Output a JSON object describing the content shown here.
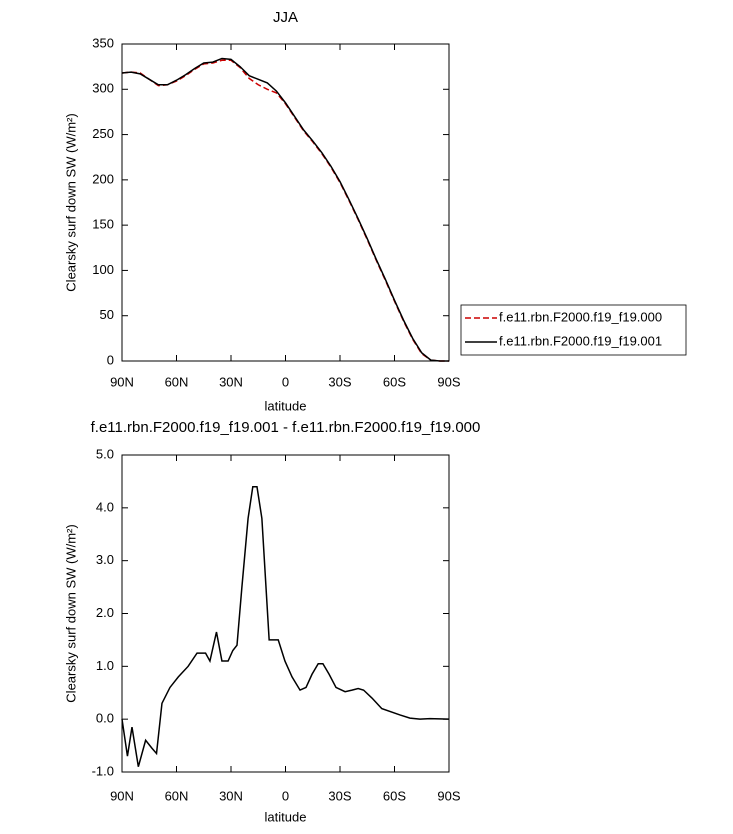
{
  "chart_data": [
    {
      "type": "line",
      "title": "JJA",
      "x_label": "latitude",
      "y_label": "Clearsky surf down SW (W/m²)",
      "x": [
        90,
        85,
        80,
        75,
        70,
        65,
        60,
        55,
        50,
        45,
        40,
        35,
        30,
        25,
        20,
        15,
        10,
        5,
        0,
        -5,
        -10,
        -15,
        -20,
        -25,
        -30,
        -35,
        -40,
        -45,
        -50,
        -55,
        -60,
        -65,
        -70,
        -75,
        -80,
        -85,
        -90
      ],
      "series": [
        {
          "name": "f.e11.rbn.F2000.f19_f19.000",
          "color": "#cc0000",
          "line_style": "dashed",
          "values": [
            318,
            319,
            318,
            311,
            304,
            305,
            309,
            315,
            322,
            328,
            329,
            332,
            332,
            324,
            312,
            305,
            300,
            296,
            284,
            269,
            254,
            242,
            229,
            214,
            197,
            177,
            156,
            134,
            111,
            89,
            66,
            44,
            24,
            8,
            1,
            0,
            0
          ]
        },
        {
          "name": "f.e11.rbn.F2000.f19_f19.001",
          "color": "#000000",
          "line_style": "solid",
          "values": [
            318,
            319,
            317,
            311,
            305,
            305,
            310,
            316,
            323,
            329,
            330,
            334,
            333,
            325,
            315,
            311,
            307,
            298,
            285,
            270,
            255,
            243,
            230,
            215,
            198,
            178,
            157,
            135,
            112,
            90,
            67,
            45,
            25,
            9,
            1,
            0,
            0
          ]
        }
      ],
      "xlim": [
        90,
        -90
      ],
      "xticks": [
        {
          "value": 90,
          "label": "90N"
        },
        {
          "value": 60,
          "label": "60N"
        },
        {
          "value": 30,
          "label": "30N"
        },
        0,
        {
          "value": -30,
          "label": "30S"
        },
        {
          "value": -60,
          "label": "60S"
        },
        {
          "value": -90,
          "label": "90S"
        }
      ],
      "ylim": [
        0,
        350
      ],
      "yticks": [
        0,
        50,
        100,
        150,
        200,
        250,
        300,
        350
      ],
      "legend": "right"
    },
    {
      "type": "line",
      "title": "f.e11.rbn.F2000.f19_f19.001 - f.e11.rbn.F2000.f19_f19.000",
      "x_label": "latitude",
      "y_label": "Clearsky surf down SW (W/m²)",
      "x": [
        90,
        87,
        84.5,
        81,
        77,
        73.5,
        71,
        68,
        63.6,
        59,
        53.6,
        48.7,
        44,
        41.6,
        38,
        35,
        31.6,
        29,
        26.7,
        24,
        20.6,
        18,
        15.7,
        13,
        9,
        4,
        0.3,
        -3.6,
        -8,
        -11.3,
        -14.6,
        -18,
        -20.6,
        -24,
        -27.8,
        -32.8,
        -36.6,
        -40,
        -43,
        -47.6,
        -53,
        -63,
        -68.5,
        -74,
        -79.5,
        -90
      ],
      "values": [
        0.0,
        -0.7,
        -0.15,
        -0.9,
        -0.4,
        -0.55,
        -0.65,
        0.3,
        0.6,
        0.8,
        1.0,
        1.25,
        1.25,
        1.1,
        1.65,
        1.1,
        1.1,
        1.3,
        1.4,
        2.5,
        3.8,
        4.4,
        4.4,
        3.8,
        1.5,
        1.5,
        1.1,
        0.8,
        0.55,
        0.6,
        0.85,
        1.05,
        1.05,
        0.85,
        0.6,
        0.52,
        0.55,
        0.58,
        0.55,
        0.4,
        0.2,
        0.08,
        0.02,
        0.0,
        0.01,
        0.0
      ],
      "color": "#000000",
      "xlim": [
        90,
        -90
      ],
      "xticks": [
        {
          "value": 90,
          "label": "90N"
        },
        {
          "value": 60,
          "label": "60N"
        },
        {
          "value": 30,
          "label": "30N"
        },
        0,
        {
          "value": -30,
          "label": "30S"
        },
        {
          "value": -60,
          "label": "60S"
        },
        {
          "value": -90,
          "label": "90S"
        }
      ],
      "ylim": [
        -1,
        5
      ],
      "yticks": [
        {
          "value": -1,
          "label": "-1.0"
        },
        {
          "value": 0,
          "label": "0.0"
        },
        {
          "value": 1,
          "label": "1.0"
        },
        {
          "value": 2,
          "label": "2.0"
        },
        {
          "value": 3,
          "label": "3.0"
        },
        {
          "value": 4,
          "label": "4.0"
        },
        {
          "value": 5,
          "label": "5.0"
        }
      ]
    }
  ]
}
